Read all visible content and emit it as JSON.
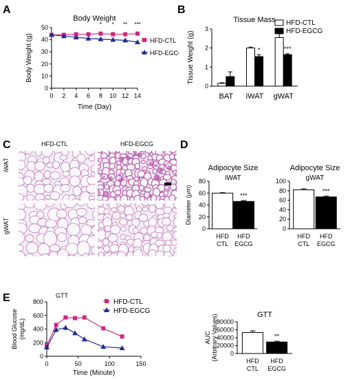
{
  "panels": {
    "A": {
      "letter": "A"
    },
    "B": {
      "letter": "B"
    },
    "C": {
      "letter": "C",
      "col_labels": [
        "HFD-CTL",
        "HFD-EGCG"
      ],
      "row_labels": [
        "iWAT",
        "gWAT"
      ]
    },
    "D": {
      "letter": "D"
    },
    "E": {
      "letter": "E"
    }
  },
  "colors": {
    "ctl": "#d4267e",
    "egcg": "#1f2a8c",
    "tissue_bg": "#f3eef6",
    "tissue_stain": "#b24fa6"
  },
  "chart_data": [
    {
      "id": "A",
      "type": "line",
      "title": "Body Weight",
      "xlabel": "Time (Day)",
      "ylabel": "Body Weight (g)",
      "x": [
        0,
        2,
        4,
        6,
        8,
        10,
        12,
        14
      ],
      "xlim": [
        0,
        14
      ],
      "ylim": [
        0,
        50
      ],
      "yticks": [
        0,
        10,
        20,
        30,
        40,
        50
      ],
      "series": [
        {
          "name": "HFD-CTL",
          "marker": "square",
          "values": [
            44,
            44,
            44.5,
            44.5,
            45,
            44.5,
            44.5,
            45
          ]
        },
        {
          "name": "HFD-EGCG",
          "marker": "triangle",
          "values": [
            44,
            43,
            42,
            41,
            40.5,
            40,
            39.5,
            38
          ]
        }
      ],
      "annotations": [
        {
          "x": 8,
          "text": "*"
        },
        {
          "x": 10,
          "text": "*"
        },
        {
          "x": 12,
          "text": "**"
        },
        {
          "x": 14,
          "text": "***"
        }
      ],
      "legend": "right"
    },
    {
      "id": "B",
      "type": "bar",
      "title": "Tissue Mass",
      "ylabel": "Tissue Weight (g)",
      "categories": [
        "BAT",
        "iWAT",
        "gWAT"
      ],
      "ylim": [
        0,
        3
      ],
      "yticks": [
        0,
        1,
        2,
        3
      ],
      "series": [
        {
          "name": "HFD-CTL",
          "values": [
            0.15,
            2.0,
            2.55
          ],
          "errors": [
            0.03,
            0.05,
            0.2
          ]
        },
        {
          "name": "HFD-EGCG",
          "values": [
            0.5,
            1.55,
            1.65
          ],
          "errors": [
            0.25,
            0.1,
            0.05
          ]
        }
      ],
      "annotations": [
        {
          "category": "iWAT",
          "text": "*"
        },
        {
          "category": "gWAT",
          "text": "***"
        }
      ],
      "legend": "top-right"
    },
    {
      "id": "D1",
      "type": "bar",
      "title": "Adipocyte Size",
      "subtitle": "iWAT",
      "ylabel": "Diameter (μm)",
      "categories": [
        "HFD CTL",
        "HFD EGCG"
      ],
      "values": [
        60,
        46
      ],
      "errors": [
        0.8,
        1.5
      ],
      "ylim": [
        0,
        80
      ],
      "yticks": [
        0,
        20,
        40,
        60,
        80
      ],
      "annotations": [
        {
          "category": "HFD EGCG",
          "text": "***"
        }
      ]
    },
    {
      "id": "D2",
      "type": "bar",
      "title": "Adipocyte Size",
      "subtitle": "gWAT",
      "categories": [
        "HFD CTL",
        "HFD EGCG"
      ],
      "values": [
        82,
        67
      ],
      "errors": [
        2,
        1.5
      ],
      "ylim": [
        0,
        100
      ],
      "yticks": [
        0,
        20,
        40,
        60,
        80,
        100
      ],
      "annotations": [
        {
          "category": "HFD EGCG",
          "text": "***"
        }
      ]
    },
    {
      "id": "E1",
      "type": "line",
      "title": "GTT",
      "xlabel": "Time (Minute)",
      "ylabel": "Blood Glucose (mg/dL)",
      "x": [
        0,
        15,
        30,
        45,
        60,
        90,
        120
      ],
      "xlim": [
        0,
        150
      ],
      "xticks": [
        0,
        50,
        100,
        150
      ],
      "ylim": [
        0,
        800
      ],
      "yticks": [
        0,
        200,
        400,
        600,
        800
      ],
      "series": [
        {
          "name": "HFD-CTL",
          "marker": "square",
          "values": [
            160,
            460,
            570,
            560,
            570,
            410,
            290
          ],
          "errors": [
            30,
            30,
            20,
            20,
            20,
            20,
            15
          ]
        },
        {
          "name": "HFD-EGCG",
          "marker": "triangle",
          "values": [
            130,
            390,
            420,
            340,
            250,
            140,
            120
          ],
          "errors": [
            40,
            40,
            40,
            30,
            20,
            15,
            10
          ]
        }
      ],
      "legend": "top-right"
    },
    {
      "id": "E2",
      "type": "bar",
      "title": "GTT",
      "ylabel": "AUC (Arbitrary Values)",
      "categories": [
        "HFD CTL",
        "HFD EGCG"
      ],
      "values": [
        53000,
        29000
      ],
      "errors": [
        4000,
        2000
      ],
      "ylim": [
        0,
        80000
      ],
      "yticks": [
        0,
        20000,
        40000,
        60000,
        80000
      ],
      "annotations": [
        {
          "category": "HFD EGCG",
          "text": "**"
        }
      ]
    }
  ]
}
